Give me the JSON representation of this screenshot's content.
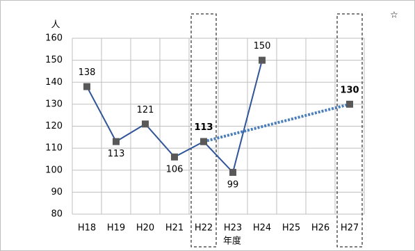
{
  "chart_data": {
    "type": "line",
    "y_label": "人",
    "x_label": "年度",
    "mark": "☆",
    "categories": [
      "H18",
      "H19",
      "H20",
      "H21",
      "H22",
      "H23",
      "H24",
      "H25",
      "H26",
      "H27"
    ],
    "series": [
      {
        "color": "#2f5597",
        "style": "solid",
        "values": [
          138,
          113,
          121,
          106,
          113,
          99,
          150,
          null,
          null,
          null
        ]
      },
      {
        "color": "#4a7ebb",
        "style": "dotted",
        "bold_labels": true,
        "values": [
          null,
          null,
          null,
          null,
          113,
          null,
          null,
          null,
          null,
          130
        ]
      }
    ],
    "highlight_indices": [
      4,
      9
    ],
    "ylim": [
      80,
      160
    ],
    "yticks": [
      80,
      90,
      100,
      110,
      120,
      130,
      140,
      150,
      160
    ],
    "grid": true
  }
}
